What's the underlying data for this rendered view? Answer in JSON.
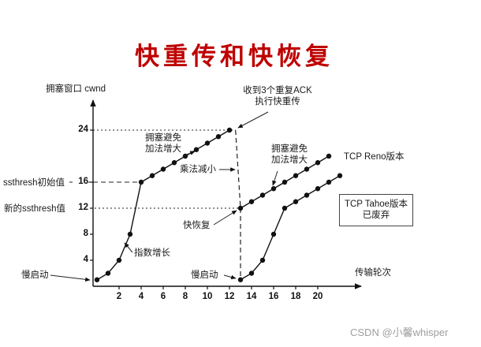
{
  "page": {
    "title": "快重传和快恢复",
    "watermark": "CSDN @小馨whisper"
  },
  "colors": {
    "title": "#BE0000",
    "line": "#111111",
    "watermark": "#9E9E9E"
  },
  "labels": {
    "y_axis": "拥塞窗口 cwnd",
    "x_axis": "传输轮次",
    "ack_note_line1": "收到3个重复ACK",
    "ack_note_line2": "执行快重传",
    "congestion_avoidance_1_line1": "拥塞避免",
    "congestion_avoidance_1_line2": "加法增大",
    "multiplicative_decrease": "乘法减小",
    "congestion_avoidance_2_line1": "拥塞避免",
    "congestion_avoidance_2_line2": "加法增大",
    "tcp_reno": "TCP Reno版本",
    "ssthresh_initial": "ssthresh初始值",
    "ssthresh_new": "新的ssthresh值",
    "fast_recovery": "快恢复",
    "exponential_growth": "指数增长",
    "slow_start_left": "慢启动",
    "slow_start_mid": "慢启动",
    "tcp_tahoe_line1": "TCP Tahoe版本",
    "tcp_tahoe_line2": "已废弃"
  },
  "chart_data": {
    "type": "line",
    "title": "快重传和快恢复",
    "xlabel": "传输轮次",
    "ylabel": "拥塞窗口 cwnd",
    "x_ticks": [
      2,
      4,
      6,
      8,
      10,
      12,
      14,
      16,
      18,
      20
    ],
    "y_ticks": [
      4,
      8,
      12,
      16,
      24
    ],
    "xlim": [
      0,
      24
    ],
    "ylim": [
      0,
      26
    ],
    "ssthresh_initial": 16,
    "ssthresh_new": 12,
    "series": [
      {
        "name": "slow-start-and-congestion-avoidance",
        "points": [
          [
            0,
            1
          ],
          [
            1,
            2
          ],
          [
            2,
            4
          ],
          [
            3,
            8
          ],
          [
            4,
            16
          ],
          [
            5,
            17
          ],
          [
            6,
            18
          ],
          [
            7,
            19
          ],
          [
            8,
            20
          ],
          [
            9,
            21
          ],
          [
            10,
            22
          ],
          [
            11,
            23
          ],
          [
            12,
            24
          ]
        ],
        "style": "solid"
      },
      {
        "name": "tcp-reno-fast-recovery",
        "points": [
          [
            13,
            12
          ],
          [
            14,
            13
          ],
          [
            15,
            14
          ],
          [
            16,
            15
          ],
          [
            17,
            16
          ],
          [
            18,
            17
          ],
          [
            19,
            18
          ],
          [
            20,
            19
          ],
          [
            21,
            20
          ]
        ],
        "style": "solid"
      },
      {
        "name": "tcp-tahoe-restart",
        "points": [
          [
            13,
            1
          ],
          [
            14,
            2
          ],
          [
            15,
            4
          ],
          [
            16,
            8
          ],
          [
            17,
            12
          ],
          [
            18,
            13
          ],
          [
            19,
            14
          ],
          [
            20,
            15
          ],
          [
            21,
            16
          ],
          [
            22,
            17
          ]
        ],
        "style": "solid"
      }
    ],
    "transitions": [
      {
        "name": "multiplicative-decrease-reno",
        "from": [
          12.55,
          24
        ],
        "to": [
          13,
          12
        ],
        "style": "dashed"
      },
      {
        "name": "multiplicative-decrease-tahoe",
        "from": [
          13,
          12
        ],
        "to": [
          13,
          1
        ],
        "style": "dashed"
      }
    ],
    "reference_lines": [
      {
        "name": "peak-24",
        "value": 24,
        "x_from": -0.35,
        "x_to": 12.55,
        "style": "dotted"
      },
      {
        "name": "ssthresh-initial-16",
        "value": 16,
        "x_from": -2.5,
        "x_to": 4,
        "style": "dashed"
      },
      {
        "name": "ssthresh-new-12",
        "value": 12,
        "x_from": -2.0,
        "x_to": 13,
        "style": "dotted"
      }
    ],
    "legend": "off",
    "grid": "off"
  }
}
